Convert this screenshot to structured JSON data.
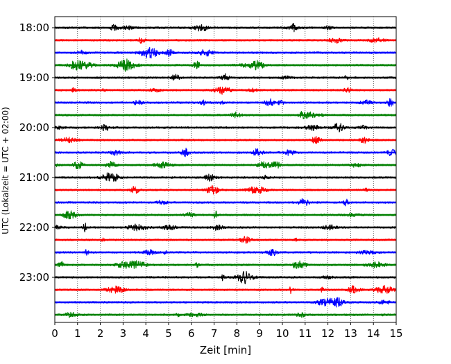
{
  "chart_data": {
    "type": "line",
    "title": "",
    "xlabel": "Zeit  [min]",
    "ylabel": "UTC (Lokalzeit = UTC + 02:00)",
    "xlim": [
      0,
      15
    ],
    "x_ticks": [
      "0",
      "1",
      "2",
      "3",
      "4",
      "5",
      "6",
      "7",
      "8",
      "9",
      "10",
      "11",
      "12",
      "13",
      "14",
      "15"
    ],
    "y_tick_labels": [
      "18:00",
      "19:00",
      "20:00",
      "21:00",
      "22:00",
      "23:00"
    ],
    "trace_colors": [
      "#000000",
      "#ff0000",
      "#0000ff",
      "#008000"
    ],
    "grid": "vertical dotted lines at each minute",
    "traces": [
      {
        "start": "18:00",
        "color": "#000000"
      },
      {
        "start": "18:15",
        "color": "#ff0000"
      },
      {
        "start": "18:30",
        "color": "#0000ff"
      },
      {
        "start": "18:45",
        "color": "#008000"
      },
      {
        "start": "19:00",
        "color": "#000000"
      },
      {
        "start": "19:15",
        "color": "#ff0000"
      },
      {
        "start": "19:30",
        "color": "#0000ff"
      },
      {
        "start": "19:45",
        "color": "#008000"
      },
      {
        "start": "20:00",
        "color": "#000000"
      },
      {
        "start": "20:15",
        "color": "#ff0000"
      },
      {
        "start": "20:30",
        "color": "#0000ff"
      },
      {
        "start": "20:45",
        "color": "#008000"
      },
      {
        "start": "21:00",
        "color": "#000000"
      },
      {
        "start": "21:15",
        "color": "#ff0000"
      },
      {
        "start": "21:30",
        "color": "#0000ff"
      },
      {
        "start": "21:45",
        "color": "#008000"
      },
      {
        "start": "22:00",
        "color": "#000000"
      },
      {
        "start": "22:15",
        "color": "#ff0000"
      },
      {
        "start": "22:30",
        "color": "#0000ff"
      },
      {
        "start": "22:45",
        "color": "#008000"
      },
      {
        "start": "23:00",
        "color": "#000000"
      },
      {
        "start": "23:15",
        "color": "#ff0000"
      },
      {
        "start": "23:30",
        "color": "#0000ff"
      },
      {
        "start": "23:45",
        "color": "#008000"
      }
    ]
  }
}
